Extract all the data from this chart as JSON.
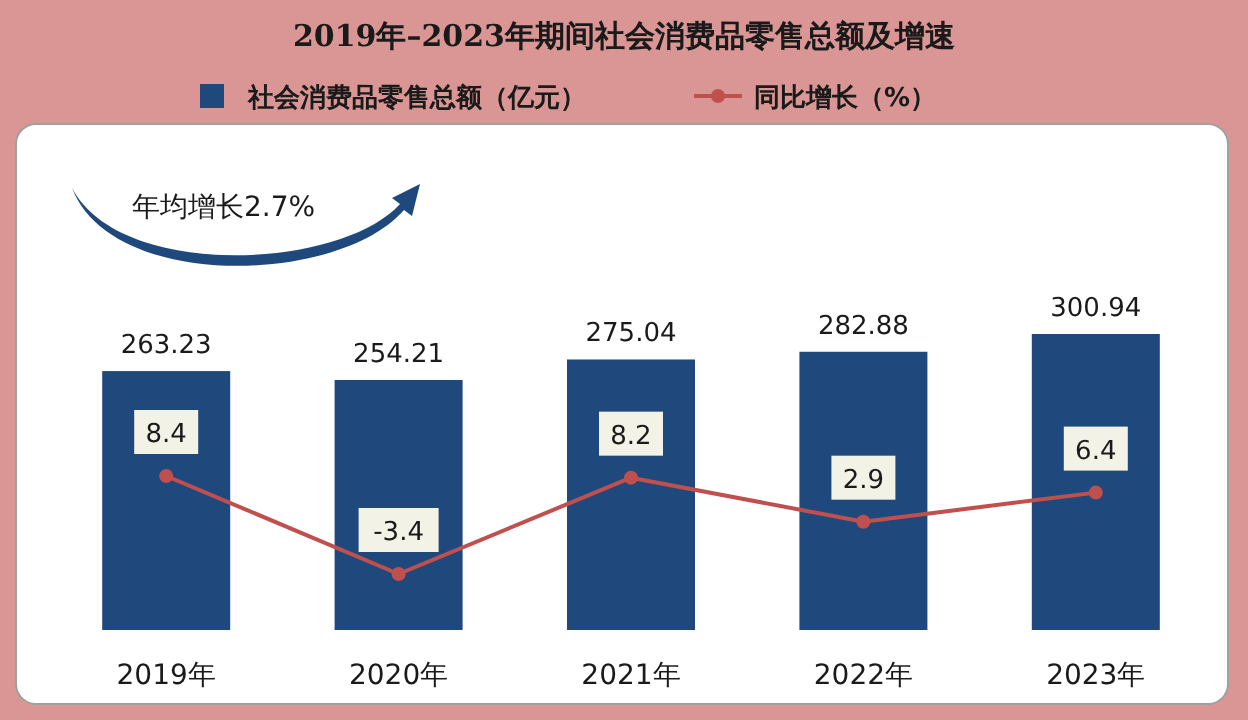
{
  "chart_data": {
    "type": "bar",
    "title": "2019年–2023年期间社会消费品零售总额及增速",
    "categories": [
      "2019年",
      "2020年",
      "2021年",
      "2022年",
      "2023年"
    ],
    "series": [
      {
        "name": "社会消费品零售总额（亿元）",
        "color": "#1f497d",
        "values": [
          263.23,
          254.21,
          275.04,
          282.88,
          300.94
        ]
      },
      {
        "name": "同比增长（%）",
        "type": "line",
        "axis": "y2",
        "color": "#c0504d",
        "marker": "circle",
        "values": [
          8.4,
          -3.4,
          8.2,
          2.9,
          6.4
        ]
      }
    ],
    "data_labels": true,
    "legend": "top",
    "annotations": [
      "年均增长2.7%"
    ]
  }
}
